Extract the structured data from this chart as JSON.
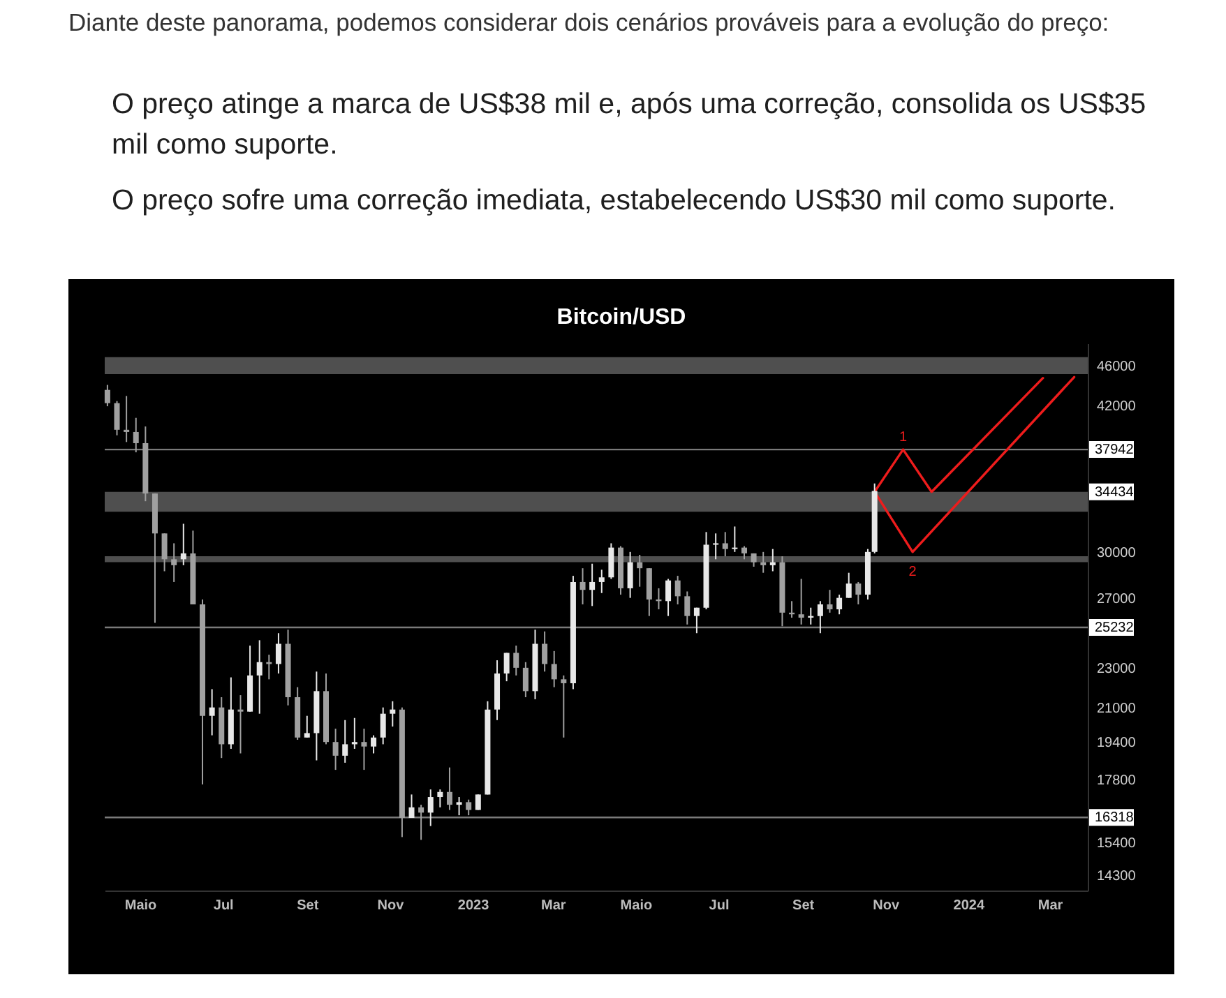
{
  "chart_data": {
    "type": "candlestick",
    "title": "Bitcoin/USD",
    "annotations": [
      "Diante deste panorama, podemos considerar dois cenários prováveis para a evolução do preço:",
      "O preço atinge a marca de US$38 mil e, após uma correção, consolida os US$35 mil como suporte.",
      "O preço sofre uma correção imediata, estabelecendo US$30 mil como suporte.",
      {
        "text": "1",
        "x": "2023-11-14",
        "y": 37942
      },
      {
        "text": "2",
        "x": "2023-11-21",
        "y": 30000
      }
    ],
    "x": [
      "2022-04-07",
      "2022-04-14",
      "2022-04-21",
      "2022-04-28",
      "2022-05-05",
      "2022-05-12",
      "2022-05-19",
      "2022-05-26",
      "2022-06-02",
      "2022-06-09",
      "2022-06-16",
      "2022-06-23",
      "2022-06-30",
      "2022-07-07",
      "2022-07-14",
      "2022-07-21",
      "2022-07-28",
      "2022-08-04",
      "2022-08-11",
      "2022-08-18",
      "2022-08-25",
      "2022-09-01",
      "2022-09-08",
      "2022-09-15",
      "2022-09-22",
      "2022-09-29",
      "2022-10-06",
      "2022-10-13",
      "2022-10-20",
      "2022-10-27",
      "2022-11-03",
      "2022-11-10",
      "2022-11-17",
      "2022-11-24",
      "2022-12-01",
      "2022-12-08",
      "2022-12-15",
      "2022-12-22",
      "2022-12-29",
      "2023-01-05",
      "2023-01-12",
      "2023-01-19",
      "2023-01-26",
      "2023-02-02",
      "2023-02-09",
      "2023-02-16",
      "2023-02-23",
      "2023-03-02",
      "2023-03-09",
      "2023-03-16",
      "2023-03-23",
      "2023-03-30",
      "2023-04-06",
      "2023-04-13",
      "2023-04-20",
      "2023-04-27",
      "2023-05-04",
      "2023-05-11",
      "2023-05-18",
      "2023-05-25",
      "2023-06-01",
      "2023-06-08",
      "2023-06-15",
      "2023-06-22",
      "2023-06-29",
      "2023-07-06",
      "2023-07-13",
      "2023-07-20",
      "2023-07-27",
      "2023-08-03",
      "2023-08-10",
      "2023-08-17",
      "2023-08-24",
      "2023-08-31",
      "2023-09-07",
      "2023-09-14",
      "2023-09-21",
      "2023-09-28",
      "2023-10-05",
      "2023-10-12",
      "2023-10-19",
      "2023-10-24"
    ],
    "ohlc": [
      [
        43500,
        44000,
        41900,
        42200
      ],
      [
        42200,
        42400,
        39200,
        39700
      ],
      [
        39700,
        42900,
        38600,
        39500
      ],
      [
        39500,
        40800,
        37700,
        38500
      ],
      [
        38500,
        40000,
        33700,
        34300
      ],
      [
        34300,
        34300,
        25500,
        31300
      ],
      [
        31300,
        31300,
        28700,
        29500
      ],
      [
        29500,
        30600,
        28000,
        29100
      ],
      [
        29500,
        32000,
        29100,
        29900
      ],
      [
        29900,
        31500,
        26600,
        26600
      ],
      [
        26600,
        26900,
        17600,
        20600
      ],
      [
        20600,
        21900,
        19700,
        21000
      ],
      [
        21000,
        21500,
        18700,
        19300
      ],
      [
        19300,
        22500,
        19100,
        20900
      ],
      [
        20900,
        21600,
        18900,
        20800
      ],
      [
        20800,
        24200,
        20800,
        22600
      ],
      [
        22600,
        24500,
        20700,
        23300
      ],
      [
        23300,
        23700,
        22400,
        23200
      ],
      [
        23200,
        24900,
        22700,
        24300
      ],
      [
        24300,
        25100,
        21100,
        21500
      ],
      [
        21500,
        22000,
        19500,
        19600
      ],
      [
        19600,
        20600,
        19600,
        19800
      ],
      [
        19800,
        22800,
        18600,
        21800
      ],
      [
        21800,
        22700,
        19300,
        19400
      ],
      [
        19400,
        20000,
        18200,
        18800
      ],
      [
        18800,
        20400,
        18500,
        19300
      ],
      [
        19300,
        20500,
        19100,
        19400
      ],
      [
        19400,
        20000,
        18200,
        19200
      ],
      [
        19200,
        19700,
        18900,
        19600
      ],
      [
        19600,
        21000,
        19300,
        20700
      ],
      [
        20700,
        21300,
        20100,
        20900
      ],
      [
        20900,
        21000,
        15600,
        16300
      ],
      [
        16300,
        17200,
        16300,
        16700
      ],
      [
        16700,
        16800,
        15500,
        16500
      ],
      [
        16500,
        17400,
        16000,
        17100
      ],
      [
        17100,
        17400,
        16700,
        17300
      ],
      [
        17300,
        18300,
        16600,
        16800
      ],
      [
        16800,
        17100,
        16400,
        16900
      ],
      [
        16900,
        17000,
        16400,
        16600
      ],
      [
        16600,
        17200,
        16600,
        17200
      ],
      [
        17200,
        21300,
        17200,
        20900
      ],
      [
        20900,
        23400,
        20400,
        22700
      ],
      [
        22700,
        23800,
        22300,
        23800
      ],
      [
        23800,
        24200,
        22600,
        23000
      ],
      [
        23000,
        23300,
        21500,
        21800
      ],
      [
        21800,
        25100,
        21400,
        24300
      ],
      [
        24300,
        25000,
        22800,
        23200
      ],
      [
        23200,
        23900,
        22000,
        22400
      ],
      [
        22400,
        22600,
        19600,
        22200
      ],
      [
        22200,
        28400,
        21900,
        28000
      ],
      [
        28000,
        28900,
        26600,
        27500
      ],
      [
        27500,
        29200,
        26500,
        28000
      ],
      [
        28000,
        28800,
        27300,
        28300
      ],
      [
        28300,
        30600,
        28200,
        30300
      ],
      [
        30300,
        30400,
        27200,
        27600
      ],
      [
        27600,
        30000,
        27000,
        29300
      ],
      [
        29300,
        29800,
        27700,
        28900
      ],
      [
        28900,
        28900,
        25900,
        26900
      ],
      [
        26900,
        27600,
        26300,
        26800
      ],
      [
        26800,
        28200,
        25900,
        28100
      ],
      [
        28100,
        28400,
        26600,
        27100
      ],
      [
        27100,
        27400,
        25400,
        25900
      ],
      [
        25900,
        26400,
        24900,
        26400
      ],
      [
        26400,
        31400,
        26300,
        30500
      ],
      [
        30500,
        31300,
        29500,
        30600
      ],
      [
        30600,
        31400,
        29700,
        30200
      ],
      [
        30200,
        31800,
        30000,
        30300
      ],
      [
        30300,
        30400,
        29500,
        29900
      ],
      [
        29900,
        29900,
        29000,
        29300
      ],
      [
        29300,
        30000,
        28600,
        29100
      ],
      [
        29100,
        30200,
        28700,
        29300
      ],
      [
        29300,
        29700,
        25300,
        26100
      ],
      [
        26100,
        26800,
        25800,
        26000
      ],
      [
        26000,
        28200,
        25400,
        25800
      ],
      [
        25800,
        26400,
        25400,
        25900
      ],
      [
        25900,
        26800,
        24900,
        26600
      ],
      [
        26600,
        27500,
        26100,
        26300
      ],
      [
        26300,
        27200,
        26000,
        27000
      ],
      [
        27000,
        28600,
        27000,
        27900
      ],
      [
        27900,
        28000,
        26600,
        27200
      ],
      [
        27200,
        30200,
        26900,
        30000
      ],
      [
        30000,
        35100,
        29900,
        34500
      ]
    ],
    "colors": [
      "#a0a0a0",
      "#a0a0a0",
      "#a0a0a0",
      "#a0a0a0",
      "#a0a0a0",
      "#a0a0a0",
      "#a0a0a0",
      "#a0a0a0",
      "#e8e8e8",
      "#a0a0a0",
      "#a0a0a0",
      "#e8e8e8",
      "#a0a0a0",
      "#e8e8e8",
      "#a0a0a0",
      "#e8e8e8",
      "#e8e8e8",
      "#a0a0a0",
      "#e8e8e8",
      "#a0a0a0",
      "#a0a0a0",
      "#e8e8e8",
      "#e8e8e8",
      "#a0a0a0",
      "#a0a0a0",
      "#e8e8e8",
      "#e8e8e8",
      "#a0a0a0",
      "#e8e8e8",
      "#e8e8e8",
      "#e8e8e8",
      "#a0a0a0",
      "#e8e8e8",
      "#a0a0a0",
      "#e8e8e8",
      "#e8e8e8",
      "#a0a0a0",
      "#e8e8e8",
      "#a0a0a0",
      "#e8e8e8",
      "#e8e8e8",
      "#e8e8e8",
      "#e8e8e8",
      "#a0a0a0",
      "#a0a0a0",
      "#e8e8e8",
      "#a0a0a0",
      "#a0a0a0",
      "#a0a0a0",
      "#e8e8e8",
      "#a0a0a0",
      "#e8e8e8",
      "#e8e8e8",
      "#e8e8e8",
      "#a0a0a0",
      "#e8e8e8",
      "#a0a0a0",
      "#a0a0a0",
      "#a0a0a0",
      "#e8e8e8",
      "#a0a0a0",
      "#a0a0a0",
      "#e8e8e8",
      "#e8e8e8",
      "#e8e8e8",
      "#a0a0a0",
      "#e8e8e8",
      "#a0a0a0",
      "#a0a0a0",
      "#a0a0a0",
      "#e8e8e8",
      "#a0a0a0",
      "#a0a0a0",
      "#a0a0a0",
      "#e8e8e8",
      "#e8e8e8",
      "#a0a0a0",
      "#e8e8e8",
      "#e8e8e8",
      "#a0a0a0",
      "#e8e8e8",
      "#e8e8e8"
    ],
    "series": [
      {
        "type": "line",
        "color": "#ee1c1c",
        "x": [
          "2023-10-24",
          "2023-11-14",
          "2023-12-05",
          "2024-02-25"
        ],
        "values": [
          34434,
          37942,
          34434,
          44700
        ]
      },
      {
        "type": "line",
        "color": "#ee1c1c",
        "x": [
          "2023-10-24",
          "2023-11-21",
          "2024-03-19"
        ],
        "values": [
          34434,
          30000,
          44800
        ]
      }
    ],
    "log": true,
    "xlim": [
      "2022-04-05",
      "2024-03-29"
    ],
    "xticks": [
      {
        "value": "2022-05-01",
        "label": "Maio"
      },
      {
        "value": "2022-07-01",
        "label": "Jul"
      },
      {
        "value": "2022-09-01",
        "label": "Set"
      },
      {
        "value": "2022-11-01",
        "label": "Nov"
      },
      {
        "value": "2023-01-01",
        "label": "2023"
      },
      {
        "value": "2023-03-01",
        "label": "Mar"
      },
      {
        "value": "2023-05-01",
        "label": "Maio"
      },
      {
        "value": "2023-07-01",
        "label": "Jul"
      },
      {
        "value": "2023-09-01",
        "label": "Set"
      },
      {
        "value": "2023-11-01",
        "label": "Nov"
      },
      {
        "value": "2024-01-01",
        "label": "2024"
      },
      {
        "value": "2024-03-01",
        "label": "Mar"
      }
    ],
    "ylim": [
      13800,
      48400
    ],
    "yticks": [
      14300,
      15400,
      17800,
      19400,
      21000,
      23000,
      27000,
      30000,
      42000,
      46000
    ],
    "ref_lines": [
      {
        "axis": "y",
        "value": 37942,
        "label": "37942",
        "color": "#7a7a7a"
      },
      {
        "axis": "y",
        "value": 25232,
        "label": "25232",
        "color": "#7a7a7a"
      },
      {
        "axis": "y",
        "value": 16318,
        "label": "16318",
        "color": "#7a7a7a"
      }
    ],
    "bands": [
      {
        "axis": "y",
        "from": 45100,
        "to": 46900,
        "color": "#4f4f4f"
      },
      {
        "axis": "y",
        "from": 32900,
        "to": 34434,
        "label": "34434",
        "color": "#4f4f4f"
      },
      {
        "axis": "y",
        "from": 29300,
        "to": 29700,
        "color": "#4f4f4f"
      }
    ]
  }
}
